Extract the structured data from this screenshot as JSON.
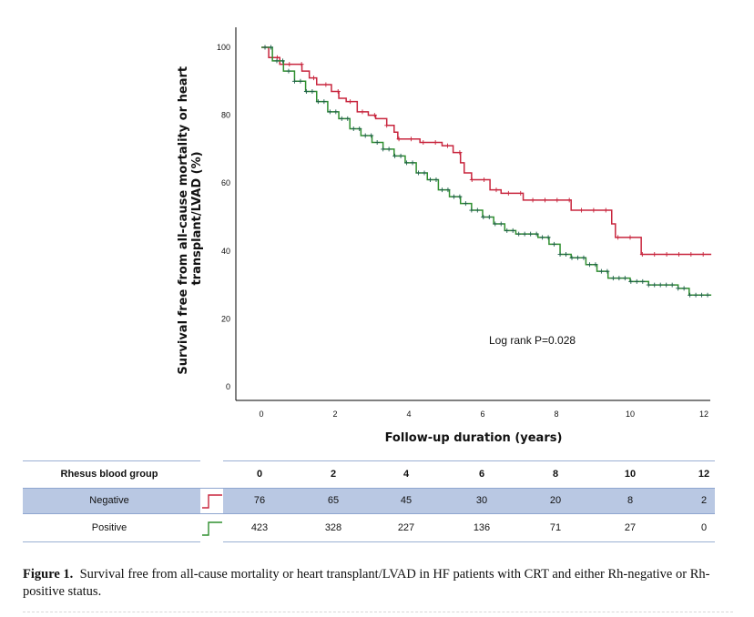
{
  "chart_data": {
    "type": "line",
    "step": true,
    "title": "",
    "xlabel": "Follow-up duration (years)",
    "ylabel": "Survival free from all-cause mortality or heart transplant/LVAD (%)",
    "xlim": [
      0,
      12
    ],
    "ylim": [
      0,
      100
    ],
    "xticks": [
      0,
      2,
      4,
      6,
      8,
      10,
      12
    ],
    "yticks": [
      0,
      20,
      40,
      60,
      80,
      100
    ],
    "grid": false,
    "annotation": "Log rank P=0.028",
    "series": [
      {
        "name": "Negative",
        "color": "#c8253d",
        "points": [
          [
            0,
            100
          ],
          [
            0.2,
            97
          ],
          [
            0.5,
            95
          ],
          [
            1.1,
            93
          ],
          [
            1.3,
            91
          ],
          [
            1.5,
            89
          ],
          [
            1.9,
            87
          ],
          [
            2.1,
            85
          ],
          [
            2.3,
            84
          ],
          [
            2.6,
            81
          ],
          [
            2.9,
            80
          ],
          [
            3.1,
            79
          ],
          [
            3.4,
            77
          ],
          [
            3.6,
            75
          ],
          [
            3.7,
            73
          ],
          [
            4.3,
            72
          ],
          [
            4.9,
            71
          ],
          [
            5.2,
            69
          ],
          [
            5.4,
            66
          ],
          [
            5.5,
            63
          ],
          [
            5.7,
            61
          ],
          [
            6.2,
            58
          ],
          [
            6.5,
            57
          ],
          [
            7.1,
            55
          ],
          [
            8.4,
            52
          ],
          [
            9.5,
            48
          ],
          [
            9.6,
            44
          ],
          [
            10.3,
            39
          ],
          [
            12.2,
            39
          ]
        ]
      },
      {
        "name": "Positive",
        "color": "#2f8f2f",
        "points": [
          [
            0,
            100
          ],
          [
            0.3,
            96
          ],
          [
            0.6,
            93
          ],
          [
            0.9,
            90
          ],
          [
            1.2,
            87
          ],
          [
            1.5,
            84
          ],
          [
            1.8,
            81
          ],
          [
            2.1,
            79
          ],
          [
            2.4,
            76
          ],
          [
            2.7,
            74
          ],
          [
            3.0,
            72
          ],
          [
            3.3,
            70
          ],
          [
            3.6,
            68
          ],
          [
            3.9,
            66
          ],
          [
            4.2,
            63
          ],
          [
            4.5,
            61
          ],
          [
            4.8,
            58
          ],
          [
            5.1,
            56
          ],
          [
            5.4,
            54
          ],
          [
            5.7,
            52
          ],
          [
            6.0,
            50
          ],
          [
            6.3,
            48
          ],
          [
            6.6,
            46
          ],
          [
            6.9,
            45
          ],
          [
            7.5,
            44
          ],
          [
            7.8,
            42
          ],
          [
            8.1,
            39
          ],
          [
            8.4,
            38
          ],
          [
            8.8,
            36
          ],
          [
            9.1,
            34
          ],
          [
            9.4,
            32
          ],
          [
            10.0,
            31
          ],
          [
            10.5,
            30
          ],
          [
            11.3,
            29
          ],
          [
            11.6,
            27
          ],
          [
            12.2,
            27
          ]
        ]
      }
    ]
  },
  "risk_table": {
    "header_label": "Rhesus blood group",
    "timepoints": [
      "0",
      "2",
      "4",
      "6",
      "8",
      "10",
      "12"
    ],
    "rows": [
      {
        "label": "Negative",
        "values": [
          "76",
          "65",
          "45",
          "30",
          "20",
          "8",
          "2"
        ]
      },
      {
        "label": "Positive",
        "values": [
          "423",
          "328",
          "227",
          "136",
          "71",
          "27",
          "0"
        ]
      }
    ]
  },
  "caption": {
    "label": "Figure 1.",
    "text": "Survival free from all-cause mortality or heart transplant/LVAD in HF patients with CRT and either Rh-negative or Rh-positive status."
  }
}
